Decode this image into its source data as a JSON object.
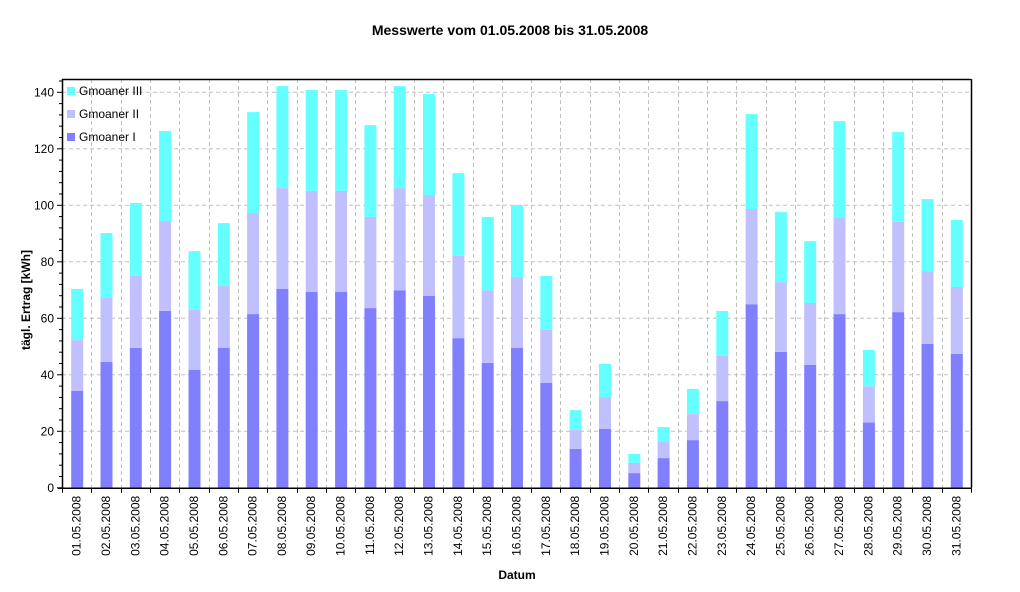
{
  "chart_data": {
    "type": "bar",
    "stacked": true,
    "title": "Messwerte vom 01.05.2008 bis 31.05.2008",
    "xlabel": "Datum",
    "ylabel": "tägl. Ertrag [kWh]",
    "ylim": [
      0,
      145
    ],
    "yticks": [
      0,
      20,
      40,
      60,
      80,
      100,
      120,
      140
    ],
    "grid": true,
    "legend_position": "top-left inside",
    "categories": [
      "01.05.2008",
      "02.05.2008",
      "03.05.2008",
      "04.05.2008",
      "05.05.2008",
      "06.05.2008",
      "07.05.2008",
      "08.05.2008",
      "09.05.2008",
      "10.05.2008",
      "11.05.2008",
      "12.05.2008",
      "13.05.2008",
      "14.05.2008",
      "15.05.2008",
      "16.05.2008",
      "17.05.2008",
      "18.05.2008",
      "19.05.2008",
      "20.05.2008",
      "21.05.2008",
      "22.05.2008",
      "23.05.2008",
      "24.05.2008",
      "25.05.2008",
      "26.05.2008",
      "27.05.2008",
      "28.05.2008",
      "29.05.2008",
      "30.05.2008",
      "31.05.2008"
    ],
    "series": [
      {
        "name": "Gmoaner I",
        "color": "#8080FF",
        "values": [
          34.3,
          44.6,
          49.5,
          62.6,
          41.7,
          49.5,
          61.5,
          70.4,
          69.3,
          69.3,
          63.6,
          69.9,
          67.9,
          53.0,
          44.2,
          49.5,
          37.1,
          13.8,
          20.8,
          5.2,
          10.5,
          16.9,
          30.7,
          65.0,
          48.1,
          43.5,
          61.5,
          23.1,
          62.2,
          50.9,
          47.4
        ]
      },
      {
        "name": "Gmoaner II",
        "color": "#C0C0FF",
        "values": [
          18.0,
          22.6,
          25.5,
          31.8,
          21.3,
          21.9,
          35.8,
          35.7,
          35.8,
          35.8,
          32.3,
          36.2,
          35.7,
          29.1,
          25.7,
          25.1,
          18.8,
          6.7,
          11.4,
          3.6,
          5.7,
          9.2,
          16.0,
          33.7,
          24.7,
          21.9,
          34.0,
          12.8,
          31.9,
          25.8,
          23.7
        ]
      },
      {
        "name": "Gmoaner III",
        "color": "#66FFFF",
        "values": [
          18.1,
          23.0,
          25.8,
          31.9,
          20.8,
          22.3,
          35.7,
          36.1,
          35.7,
          35.7,
          32.5,
          36.1,
          35.8,
          29.3,
          26.0,
          25.5,
          19.1,
          7.0,
          11.7,
          3.2,
          5.3,
          8.9,
          15.9,
          33.6,
          24.8,
          21.9,
          34.3,
          12.9,
          31.8,
          25.5,
          23.7
        ]
      }
    ],
    "totals": [
      70.4,
      90.2,
      100.8,
      126.3,
      83.8,
      93.7,
      133.0,
      142.2,
      140.8,
      140.8,
      128.4,
      142.2,
      139.4,
      111.4,
      95.9,
      100.1,
      75.0,
      27.5,
      43.9,
      12.0,
      21.5,
      35.0,
      62.6,
      132.3,
      97.6,
      87.3,
      129.8,
      48.8,
      125.9,
      102.2,
      94.8
    ]
  },
  "legend": [
    {
      "label": "Gmoaner III",
      "color": "#66FFFF"
    },
    {
      "label": "Gmoaner II",
      "color": "#C0C0FF"
    },
    {
      "label": "Gmoaner I",
      "color": "#8080FF"
    }
  ]
}
